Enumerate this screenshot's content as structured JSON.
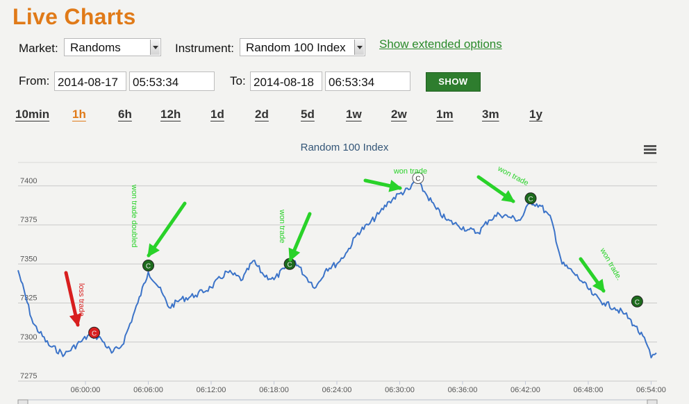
{
  "header": {
    "title": "Live Charts"
  },
  "controls": {
    "market_label": "Market:",
    "market_value": "Randoms",
    "instrument_label": "Instrument:",
    "instrument_value": "Random 100 Index",
    "extended_link": "Show extended options",
    "from_label": "From:",
    "from_date": "2014-08-17",
    "from_time": "05:53:34",
    "to_label": "To:",
    "to_date": "2014-08-18",
    "to_time": "06:53:34",
    "show_button": "SHOW"
  },
  "ranges": [
    {
      "label": "10min",
      "active": false
    },
    {
      "label": "1h",
      "active": true
    },
    {
      "label": "6h",
      "active": false
    },
    {
      "label": "12h",
      "active": false
    },
    {
      "label": "1d",
      "active": false
    },
    {
      "label": "2d",
      "active": false
    },
    {
      "label": "5d",
      "active": false
    },
    {
      "label": "1w",
      "active": false
    },
    {
      "label": "2w",
      "active": false
    },
    {
      "label": "1m",
      "active": false
    },
    {
      "label": "3m",
      "active": false
    },
    {
      "label": "1y",
      "active": false
    }
  ],
  "chart_data": {
    "type": "line",
    "title": "Random 100 Index",
    "ylim": [
      7275,
      7415
    ],
    "yticks": [
      7275,
      7300,
      7325,
      7350,
      7375,
      7400
    ],
    "xticks": [
      "06:00:00",
      "06:06:00",
      "06:12:00",
      "06:18:00",
      "06:24:00",
      "06:30:00",
      "06:36:00",
      "06:42:00",
      "06:48:00",
      "06:54:00"
    ],
    "grid": true,
    "line_color": "#3b73c8",
    "series": [
      {
        "x": [
          "05:53:34",
          "05:55:00",
          "05:56:30",
          "05:58:00",
          "05:59:30",
          "06:00:30",
          "06:01:30",
          "06:02:30",
          "06:03:30",
          "06:05:00",
          "06:06:00",
          "06:07:00",
          "06:08:00",
          "06:09:00",
          "06:10:30",
          "06:12:00",
          "06:13:30",
          "06:15:00",
          "06:16:00",
          "06:17:00",
          "06:18:00",
          "06:19:00",
          "06:20:00",
          "06:21:00",
          "06:22:00",
          "06:23:00",
          "06:24:00",
          "06:25:00",
          "06:26:00",
          "06:27:00",
          "06:28:00",
          "06:29:00",
          "06:30:00",
          "06:31:00",
          "06:31:30",
          "06:32:30",
          "06:33:30",
          "06:34:30",
          "06:35:30",
          "06:36:30",
          "06:37:30",
          "06:38:30",
          "06:39:30",
          "06:40:30",
          "06:41:30",
          "06:42:30",
          "06:43:30",
          "06:44:30",
          "06:45:30",
          "06:46:30",
          "06:47:30",
          "06:48:30",
          "06:49:30",
          "06:50:30",
          "06:51:30",
          "06:52:30",
          "06:53:30",
          "06:54:00",
          "06:54:30"
        ],
        "values": [
          7346,
          7312,
          7298,
          7292,
          7300,
          7305,
          7302,
          7293,
          7298,
          7325,
          7345,
          7335,
          7322,
          7327,
          7330,
          7335,
          7345,
          7340,
          7352,
          7343,
          7340,
          7347,
          7352,
          7342,
          7335,
          7347,
          7350,
          7358,
          7370,
          7375,
          7382,
          7390,
          7395,
          7398,
          7404,
          7395,
          7385,
          7378,
          7375,
          7372,
          7370,
          7378,
          7382,
          7380,
          7378,
          7390,
          7387,
          7378,
          7350,
          7345,
          7338,
          7330,
          7325,
          7322,
          7318,
          7310,
          7300,
          7290,
          7293
        ]
      }
    ],
    "markers": [
      {
        "time": "06:00:50",
        "value": 7306,
        "symbol": "C",
        "color": "#d81e1e",
        "note": "loss trade"
      },
      {
        "time": "06:06:00",
        "value": 7349,
        "symbol": "C",
        "color": "#1d6b1d",
        "note": "won trade doubled"
      },
      {
        "time": "06:19:30",
        "value": 7350,
        "symbol": "C",
        "color": "#1d6b1d",
        "note": "won trade"
      },
      {
        "time": "06:31:45",
        "value": 7405,
        "symbol": "C",
        "color": "#ffffff",
        "note": "won trade"
      },
      {
        "time": "06:42:30",
        "value": 7392,
        "symbol": "C",
        "color": "#1d6b1d",
        "note": "won trade"
      },
      {
        "time": "06:52:40",
        "value": 7326,
        "symbol": "C",
        "color": "#1d6b1d",
        "note": "won trade."
      }
    ]
  }
}
